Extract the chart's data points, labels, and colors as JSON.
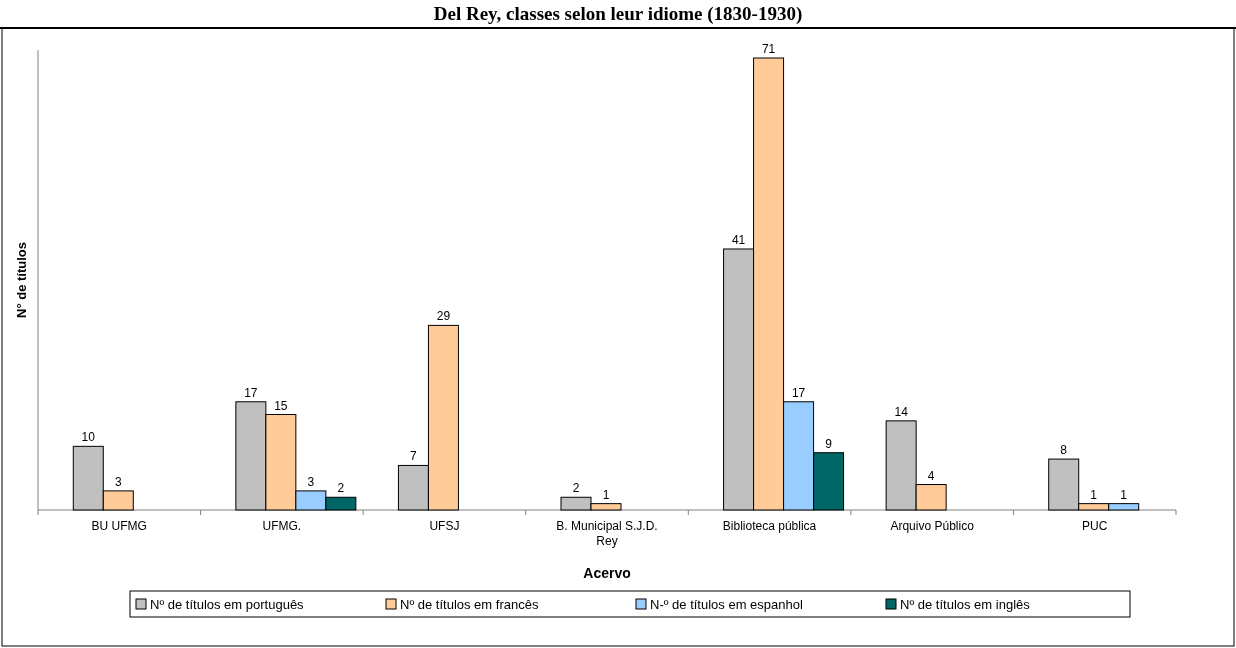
{
  "chart_data": {
    "type": "bar",
    "title": "Del Rey, classes selon leur idiome (1830-1930)",
    "xlabel": "Acervo",
    "ylabel": "N° de títulos",
    "categories": [
      "BU UFMG",
      "UFMG.",
      "UFSJ",
      "B. Municipal S.J.D. Rey",
      "Biblioteca pública",
      "Arquivo Público",
      "PUC"
    ],
    "series": [
      {
        "name": "Nº de títulos em português",
        "color": "#c0c0c0",
        "values": [
          10,
          17,
          7,
          2,
          41,
          14,
          8
        ]
      },
      {
        "name": "Nº de títulos em francês",
        "color": "#ffcc99",
        "values": [
          3,
          15,
          29,
          1,
          71,
          4,
          1
        ]
      },
      {
        "name": "N-º de títulos em espanhol",
        "color": "#99ccff",
        "values": [
          null,
          3,
          null,
          null,
          17,
          null,
          1
        ]
      },
      {
        "name": "Nº de títulos em inglês",
        "color": "#006666",
        "values": [
          null,
          2,
          null,
          null,
          9,
          null,
          null
        ]
      }
    ],
    "data_labels": true,
    "legend": "bottom"
  }
}
